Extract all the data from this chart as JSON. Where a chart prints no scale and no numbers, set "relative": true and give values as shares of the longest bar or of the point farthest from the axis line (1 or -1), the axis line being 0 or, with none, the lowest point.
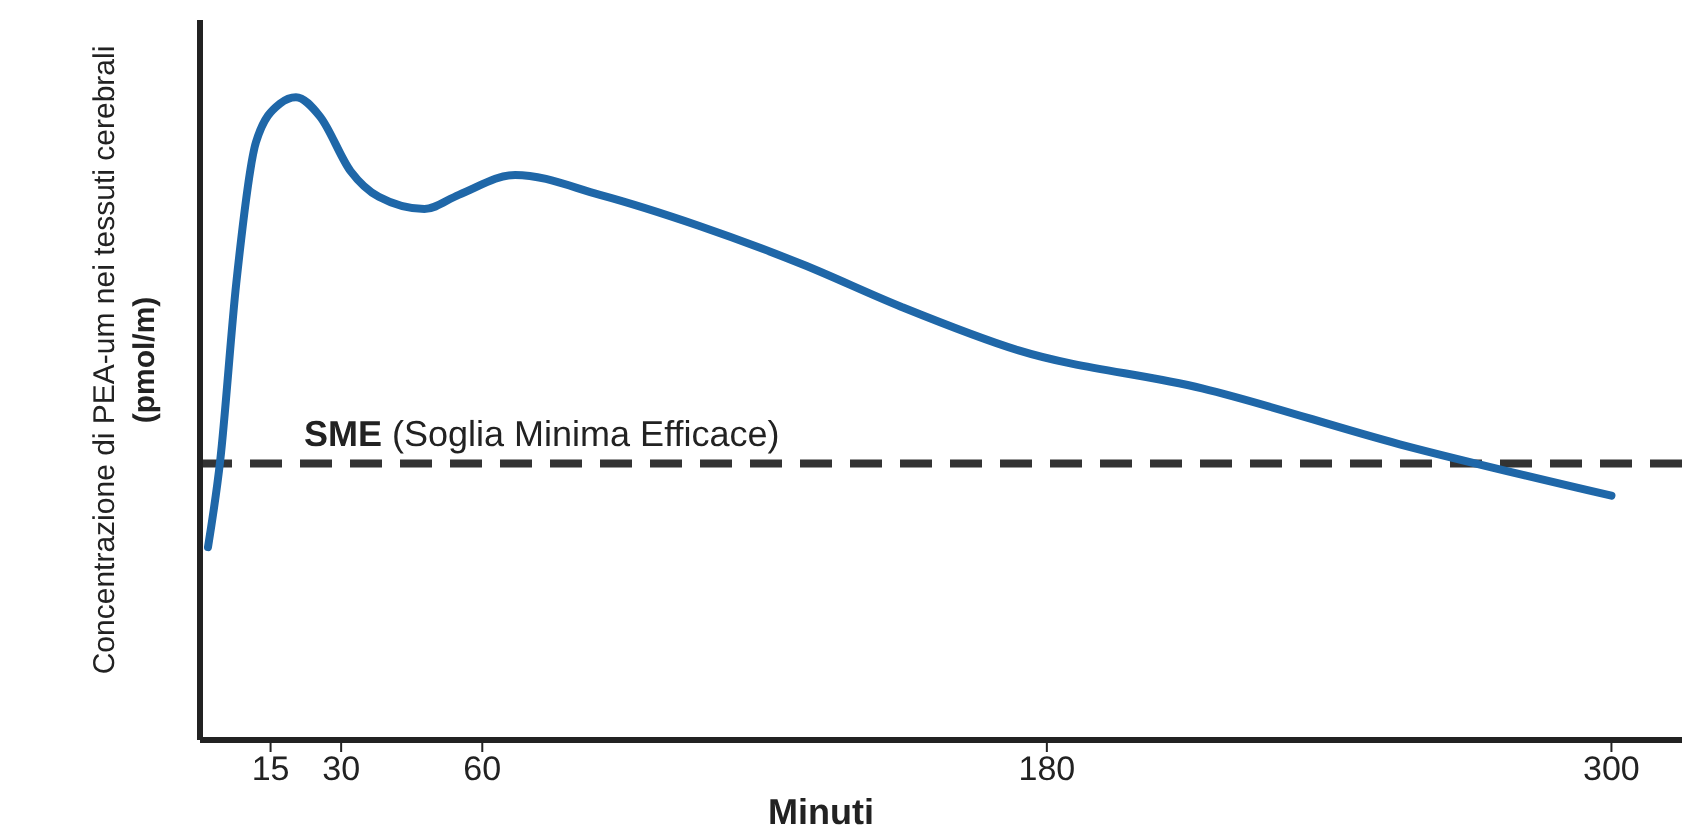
{
  "chart_data": {
    "type": "line",
    "relative": true,
    "xlabel": "Minuti",
    "ylabel": "Concentrazione di PEA-um nei tessuti cerebrali\n(pmol/m)",
    "xlim": [
      0,
      315
    ],
    "xticks": [
      15,
      30,
      60,
      180,
      300
    ],
    "marker": "none",
    "series": [
      {
        "color": "#1f67a8",
        "x": [
          1.7,
          4.3,
          7.7,
          11.9,
          17,
          20.4,
          25.5,
          32,
          38,
          47.7,
          55,
          67,
          85,
          106,
          128,
          149,
          174,
          213,
          255,
          300
        ],
        "values": [
          0.3,
          0.435,
          0.71,
          0.93,
          0.99,
          1,
          0.97,
          0.885,
          0.845,
          0.826,
          0.848,
          0.879,
          0.848,
          0.8,
          0.74,
          0.674,
          0.606,
          0.547,
          0.46,
          0.38
        ]
      }
    ],
    "ref_lines": [
      {
        "axis": "y",
        "value": 0.43,
        "label": "SME (Soglia Minima Efficace)",
        "color": "#333333",
        "line_style": "dashed"
      }
    ]
  }
}
